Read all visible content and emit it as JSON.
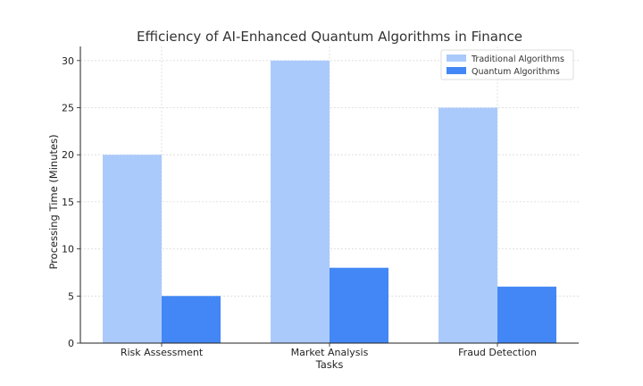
{
  "chart_data": {
    "type": "bar",
    "title": "Efficiency of AI-Enhanced Quantum Algorithms in Finance",
    "xlabel": "Tasks",
    "ylabel": "Processing Time (Minutes)",
    "categories": [
      "Risk Assessment",
      "Market Analysis",
      "Fraud Detection"
    ],
    "series": [
      {
        "name": "Traditional Algorithms",
        "values": [
          20,
          30,
          25
        ],
        "color": "#abcafc"
      },
      {
        "name": "Quantum Algorithms",
        "values": [
          5,
          8,
          6
        ],
        "color": "#4287f5"
      }
    ],
    "ylim": [
      0,
      31.5
    ],
    "yticks": [
      0,
      5,
      10,
      15,
      20,
      25,
      30
    ],
    "grid": true,
    "legend": "top-right"
  }
}
